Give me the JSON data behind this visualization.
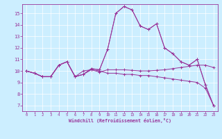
{
  "background_color": "#cceeff",
  "plot_bg_color": "#cceeff",
  "line_color": "#993399",
  "xlim": [
    -0.5,
    23.5
  ],
  "ylim": [
    6.5,
    15.8
  ],
  "yticks": [
    7,
    8,
    9,
    10,
    11,
    12,
    13,
    14,
    15
  ],
  "xticks": [
    0,
    1,
    2,
    3,
    4,
    5,
    6,
    7,
    8,
    9,
    10,
    11,
    12,
    13,
    14,
    15,
    16,
    17,
    18,
    19,
    20,
    21,
    22,
    23
  ],
  "xlabel": "Windchill (Refroidissement éolien,°C)",
  "series": [
    [
      10.0,
      9.8,
      9.5,
      9.5,
      10.5,
      10.8,
      9.5,
      10.0,
      10.1,
      9.9,
      10.1,
      10.1,
      10.1,
      10.05,
      10.0,
      10.0,
      10.05,
      10.1,
      10.2,
      10.3,
      10.4,
      10.5,
      10.5,
      10.3
    ],
    [
      10.0,
      9.8,
      9.5,
      9.5,
      10.5,
      10.8,
      9.5,
      9.7,
      10.2,
      10.1,
      11.9,
      15.0,
      15.6,
      15.3,
      13.9,
      13.6,
      14.1,
      12.0,
      11.5,
      10.8,
      10.5,
      11.0,
      8.8,
      7.0
    ],
    [
      10.0,
      9.8,
      9.5,
      9.5,
      10.5,
      10.8,
      9.5,
      9.7,
      10.2,
      10.1,
      11.9,
      15.0,
      15.6,
      15.3,
      13.9,
      13.6,
      14.1,
      12.0,
      11.5,
      10.8,
      10.5,
      11.0,
      8.8,
      7.0
    ],
    [
      10.0,
      9.8,
      9.5,
      9.5,
      10.5,
      10.8,
      9.5,
      9.7,
      10.1,
      10.0,
      9.8,
      9.8,
      9.7,
      9.7,
      9.6,
      9.6,
      9.5,
      9.4,
      9.3,
      9.2,
      9.1,
      9.0,
      8.5,
      7.0
    ]
  ]
}
